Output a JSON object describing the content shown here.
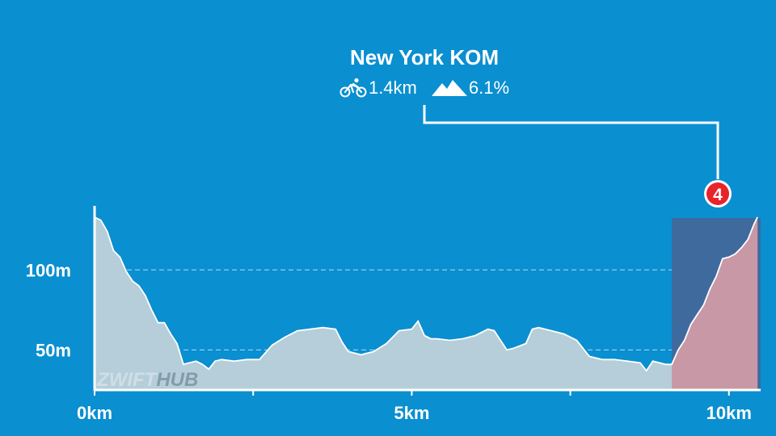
{
  "segment": {
    "name": "New York KOM",
    "distance": "1.4km",
    "gradient": "6.1%",
    "marker": "4",
    "icons": {
      "distance": "bicycle-icon",
      "gradient": "mountain-icon"
    },
    "start_km": 9.1,
    "end_km": 10.45
  },
  "watermark": {
    "part1": "ZWIFT",
    "part2": "HUB"
  },
  "colors": {
    "background": "#0a8fd0",
    "area_fill": "#b5ced9",
    "segment_highlight": "#3f6a9e",
    "segment_fill": "#c898a7",
    "marker_red": "#e8232a"
  },
  "chart_data": {
    "type": "area",
    "xlabel": "",
    "ylabel": "",
    "xlim": [
      0,
      10.5
    ],
    "ylim": [
      25,
      140
    ],
    "x_tick_values": [
      0,
      2.5,
      5,
      7.5,
      10
    ],
    "x_tick_labels": [
      "0km",
      "",
      "5km",
      "",
      "10km"
    ],
    "y_tick_values": [
      50,
      100
    ],
    "y_tick_labels": [
      "50m",
      "100m"
    ],
    "y_grid": "dashed",
    "series": [
      {
        "x": [
          0,
          0.1,
          0.2,
          0.3,
          0.4,
          0.5,
          0.6,
          0.7,
          0.8,
          0.9,
          1.0,
          1.1,
          1.2,
          1.3,
          1.4,
          1.5,
          1.6,
          1.7,
          1.8,
          1.9,
          2.0,
          2.2,
          2.4,
          2.6,
          2.8,
          3.0,
          3.2,
          3.4,
          3.6,
          3.8,
          3.9,
          4.0,
          4.2,
          4.4,
          4.6,
          4.8,
          5.0,
          5.1,
          5.2,
          5.3,
          5.4,
          5.6,
          5.8,
          6.0,
          6.2,
          6.3,
          6.4,
          6.5,
          6.6,
          6.8,
          6.9,
          7.0,
          7.2,
          7.4,
          7.6,
          7.8,
          8.0,
          8.2,
          8.4,
          8.6,
          8.7,
          8.8,
          9.0,
          9.1,
          9.2,
          9.3,
          9.4,
          9.5,
          9.6,
          9.7,
          9.8,
          9.9,
          10.0,
          10.1,
          10.2,
          10.3,
          10.4,
          10.45
        ],
        "y": [
          133,
          131,
          124,
          112,
          108,
          99,
          93,
          90,
          84,
          75,
          67,
          67,
          60,
          54,
          41,
          42,
          43,
          41,
          38,
          43,
          44,
          43,
          44,
          44,
          53,
          58,
          62,
          63,
          64,
          63,
          55,
          49,
          47,
          49,
          54,
          62,
          63,
          68,
          59,
          57,
          57,
          56,
          57,
          59,
          63,
          62,
          56,
          50,
          51,
          54,
          63,
          64,
          62,
          60,
          56,
          46,
          44,
          44,
          43,
          42,
          37,
          43,
          41,
          41,
          50,
          56,
          66,
          72,
          78,
          88,
          96,
          107,
          108,
          110,
          114,
          119,
          129,
          133
        ]
      }
    ]
  }
}
